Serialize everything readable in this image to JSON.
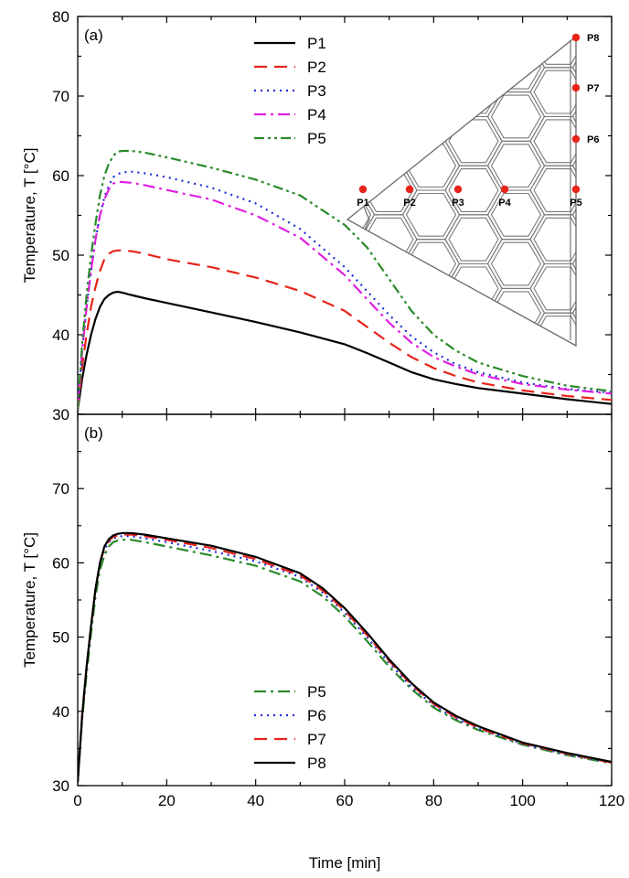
{
  "chart_data": [
    {
      "type": "line",
      "panel_label": "(a)",
      "xlabel": "",
      "ylabel": "Temperature, T [°C]",
      "xlim": [
        0,
        120
      ],
      "ylim": [
        30,
        80
      ],
      "x_ticks": [
        0,
        20,
        40,
        60,
        80,
        100,
        120
      ],
      "y_ticks": [
        30,
        40,
        50,
        60,
        70,
        80
      ],
      "grid": false,
      "legend_position": "top-center",
      "series": [
        {
          "name": "P1",
          "color": "#000000",
          "dash": "solid",
          "x": [
            0,
            1,
            2,
            3,
            4,
            5,
            6,
            7,
            8,
            9,
            10,
            12,
            15,
            20,
            30,
            40,
            50,
            60,
            65,
            70,
            75,
            80,
            85,
            90,
            100,
            110,
            120
          ],
          "y": [
            30.5,
            34.5,
            37.5,
            40,
            42,
            43.5,
            44.5,
            45,
            45.3,
            45.4,
            45.3,
            45,
            44.6,
            44,
            42.8,
            41.6,
            40.3,
            38.8,
            37.7,
            36.5,
            35.3,
            34.4,
            33.8,
            33.3,
            32.6,
            31.9,
            31.3
          ]
        },
        {
          "name": "P2",
          "color": "#e8231a",
          "dash": "long-dash",
          "x": [
            0,
            1,
            2,
            3,
            4,
            5,
            6,
            7,
            8,
            9,
            10,
            12,
            15,
            20,
            30,
            40,
            50,
            60,
            65,
            70,
            75,
            80,
            85,
            90,
            100,
            110,
            120
          ],
          "y": [
            30.5,
            36,
            40,
            43.5,
            46,
            48,
            49.5,
            50.2,
            50.5,
            50.6,
            50.6,
            50.5,
            50.2,
            49.5,
            48.5,
            47.2,
            45.5,
            43,
            41,
            39,
            37.2,
            35.8,
            34.8,
            34,
            33,
            32.3,
            31.8
          ]
        },
        {
          "name": "P3",
          "color": "#1f2fd6",
          "dash": "dot",
          "x": [
            0,
            1,
            2,
            3,
            4,
            5,
            6,
            7,
            8,
            9,
            10,
            12,
            15,
            20,
            30,
            40,
            50,
            60,
            65,
            70,
            75,
            80,
            85,
            90,
            100,
            110,
            120
          ],
          "y": [
            30.5,
            38,
            43.5,
            48,
            52,
            55,
            57.3,
            58.8,
            59.8,
            60.2,
            60.4,
            60.5,
            60.3,
            59.8,
            58.5,
            56.5,
            53.3,
            48.5,
            45.5,
            42.5,
            39.8,
            37.8,
            36.3,
            35.3,
            34,
            33.2,
            32.7
          ]
        },
        {
          "name": "P4",
          "color": "#e020e0",
          "dash": "dash-dot",
          "x": [
            0,
            1,
            2,
            3,
            4,
            5,
            6,
            7,
            8,
            9,
            10,
            12,
            15,
            20,
            30,
            40,
            50,
            60,
            65,
            70,
            75,
            80,
            85,
            90,
            100,
            110,
            120
          ],
          "y": [
            30.5,
            38,
            43.5,
            48,
            52,
            55,
            57,
            58.3,
            59,
            59.2,
            59.2,
            59.1,
            58.8,
            58.2,
            57,
            55,
            52.2,
            47.5,
            44.5,
            41.5,
            39,
            37.2,
            36,
            35,
            33.8,
            33.1,
            32.6
          ]
        },
        {
          "name": "P5",
          "color": "#2a8a2a",
          "dash": "dash-dot-dot",
          "x": [
            0,
            1,
            2,
            3,
            4,
            5,
            6,
            7,
            8,
            9,
            10,
            12,
            15,
            20,
            30,
            40,
            50,
            60,
            65,
            70,
            75,
            80,
            85,
            90,
            100,
            110,
            120
          ],
          "y": [
            30.5,
            39,
            45,
            50,
            54,
            57.5,
            60,
            61.5,
            62.5,
            63,
            63.1,
            63.1,
            62.9,
            62.3,
            61,
            59.5,
            57.5,
            53.8,
            51,
            47,
            43,
            40,
            38,
            36.5,
            34.8,
            33.6,
            32.9
          ]
        }
      ],
      "inset": {
        "points": [
          "P1",
          "P2",
          "P3",
          "P4",
          "P5",
          "P6",
          "P7",
          "P8"
        ],
        "marker_color": "#e8231a"
      }
    },
    {
      "type": "line",
      "panel_label": "(b)",
      "xlabel": "Time [min]",
      "ylabel": "Temperature, T [°C]",
      "xlim": [
        0,
        120
      ],
      "ylim": [
        30,
        80
      ],
      "x_ticks": [
        0,
        20,
        40,
        60,
        80,
        100,
        120
      ],
      "y_ticks": [
        30,
        40,
        50,
        60,
        70
      ],
      "grid": false,
      "legend_position": "bottom-center",
      "series": [
        {
          "name": "P5",
          "color": "#2a8a2a",
          "dash": "dash-dot",
          "x": [
            0,
            1,
            2,
            3,
            4,
            5,
            6,
            7,
            8,
            9,
            10,
            12,
            15,
            20,
            30,
            40,
            50,
            55,
            60,
            65,
            70,
            75,
            80,
            85,
            90,
            100,
            110,
            120
          ],
          "y": [
            30.5,
            39,
            45,
            50.5,
            55.5,
            59,
            61,
            62.2,
            62.8,
            63,
            63.1,
            63.1,
            62.8,
            62.2,
            61,
            59.6,
            57.5,
            55.5,
            52.8,
            49.5,
            46,
            43,
            40.5,
            38.8,
            37.5,
            35.5,
            34.1,
            33
          ]
        },
        {
          "name": "P6",
          "color": "#1f2fd6",
          "dash": "dot",
          "x": [
            0,
            1,
            2,
            3,
            4,
            5,
            6,
            7,
            8,
            9,
            10,
            12,
            15,
            20,
            30,
            40,
            50,
            55,
            60,
            65,
            70,
            75,
            80,
            85,
            90,
            100,
            110,
            120
          ],
          "y": [
            30.5,
            39.5,
            46,
            51.5,
            56.5,
            59.8,
            61.8,
            62.8,
            63.3,
            63.5,
            63.6,
            63.6,
            63.3,
            62.8,
            61.6,
            60.2,
            58.1,
            56,
            53.3,
            50,
            46.5,
            43.3,
            40.8,
            39,
            37.7,
            35.6,
            34.2,
            33.1
          ]
        },
        {
          "name": "P7",
          "color": "#e8231a",
          "dash": "long-dash",
          "x": [
            0,
            1,
            2,
            3,
            4,
            5,
            6,
            7,
            8,
            9,
            10,
            12,
            15,
            20,
            30,
            40,
            50,
            55,
            60,
            65,
            70,
            75,
            80,
            85,
            90,
            100,
            110,
            120
          ],
          "y": [
            30.5,
            39.5,
            46,
            51.5,
            56.5,
            60,
            62,
            63,
            63.5,
            63.7,
            63.8,
            63.8,
            63.6,
            63.1,
            62,
            60.5,
            58.3,
            56.3,
            53.6,
            50.3,
            46.8,
            43.6,
            41,
            39.2,
            37.8,
            35.7,
            34.3,
            33.1
          ]
        },
        {
          "name": "P8",
          "color": "#000000",
          "dash": "solid",
          "x": [
            0,
            1,
            2,
            3,
            4,
            5,
            6,
            7,
            8,
            9,
            10,
            12,
            15,
            20,
            30,
            40,
            50,
            55,
            60,
            65,
            70,
            75,
            80,
            85,
            90,
            100,
            110,
            120
          ],
          "y": [
            30.5,
            39.5,
            46,
            51.5,
            56.5,
            60,
            62.2,
            63.2,
            63.7,
            63.9,
            64,
            64,
            63.8,
            63.3,
            62.3,
            60.8,
            58.6,
            56.6,
            53.9,
            50.6,
            47,
            43.8,
            41.2,
            39.4,
            38,
            35.8,
            34.4,
            33.2
          ]
        }
      ]
    }
  ]
}
